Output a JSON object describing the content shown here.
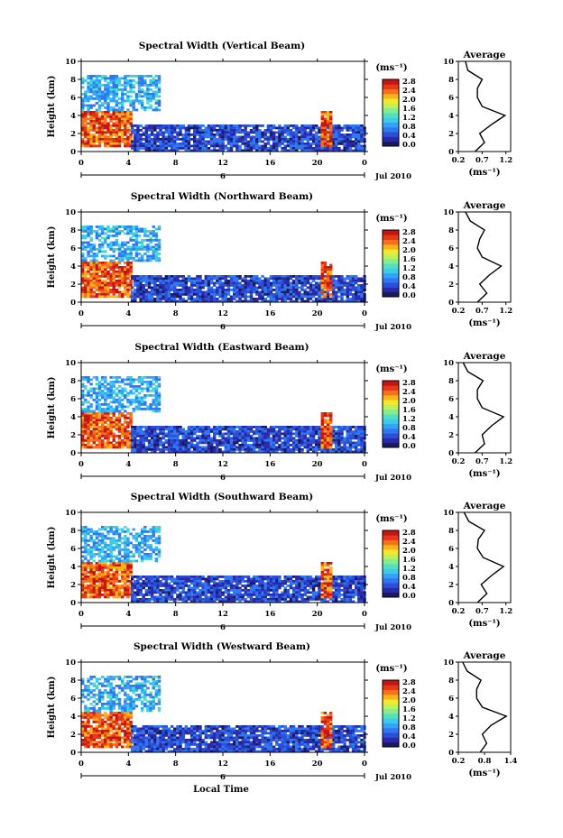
{
  "figure": {
    "xlabel": "Local Time",
    "average_title": "Average",
    "ylabel": "Height (km)",
    "date_label": "Jul 2010",
    "day_label": "6",
    "colorbar": {
      "unit_label": "(ms⁻¹)",
      "ticks": [
        "0.0",
        "0.4",
        "0.8",
        "1.2",
        "1.6",
        "2.0",
        "2.4",
        "2.8"
      ],
      "colors": [
        "#1a1a5e",
        "#2a2aa8",
        "#2b4fd8",
        "#2f78f0",
        "#34a3f5",
        "#3ccbe8",
        "#54e0c0",
        "#86ec8e",
        "#bff05a",
        "#f3e82e",
        "#fbb21c",
        "#f7701a",
        "#e43a18",
        "#c41414"
      ]
    }
  },
  "chart_data": [
    {
      "type": "heatmap",
      "title": "Spectral Width (Vertical Beam)",
      "xlim": [
        0,
        24
      ],
      "ylim": [
        0,
        10
      ],
      "xticks": [
        "0",
        "4",
        "8",
        "12",
        "16",
        "20",
        "0"
      ],
      "yticks": [
        "0",
        "2",
        "4",
        "6",
        "8",
        "10"
      ],
      "zlim": [
        0,
        3.0
      ],
      "regions": [
        {
          "x": [
            0,
            4.2
          ],
          "y": [
            0.5,
            4.5
          ],
          "value": 2.6
        },
        {
          "x": [
            4.2,
            24
          ],
          "y": [
            0.2,
            3.0
          ],
          "value": 0.5
        },
        {
          "x": [
            0,
            6.5
          ],
          "y": [
            4.5,
            8.5
          ],
          "value": 1.0
        },
        {
          "x": [
            20.3,
            21.2
          ],
          "y": [
            0.5,
            4.5
          ],
          "value": 2.6
        }
      ],
      "avg": {
        "xticks": [
          "0.2",
          "0.7",
          "1.2"
        ],
        "xlim": [
          0.2,
          1.3
        ],
        "xlabel": "(ms⁻¹)",
        "profile": [
          [
            0,
            0.55
          ],
          [
            1,
            0.75
          ],
          [
            2,
            0.65
          ],
          [
            3,
            0.9
          ],
          [
            4,
            1.18
          ],
          [
            5,
            0.7
          ],
          [
            6,
            0.6
          ],
          [
            7,
            0.6
          ],
          [
            8,
            0.7
          ],
          [
            9,
            0.4
          ],
          [
            10,
            0.35
          ]
        ]
      }
    },
    {
      "type": "heatmap",
      "title": "Spectral Width (Northward Beam)",
      "xlim": [
        0,
        24
      ],
      "ylim": [
        0,
        10
      ],
      "xticks": [
        "0",
        "4",
        "8",
        "12",
        "16",
        "20",
        "0"
      ],
      "yticks": [
        "0",
        "2",
        "4",
        "6",
        "8",
        "10"
      ],
      "zlim": [
        0,
        3.0
      ],
      "regions": [
        {
          "x": [
            0,
            4.2
          ],
          "y": [
            0.5,
            4.5
          ],
          "value": 2.6
        },
        {
          "x": [
            4.2,
            24
          ],
          "y": [
            0.2,
            3.0
          ],
          "value": 0.5
        },
        {
          "x": [
            0,
            6.5
          ],
          "y": [
            4.5,
            8.5
          ],
          "value": 1.0
        },
        {
          "x": [
            20.3,
            21.2
          ],
          "y": [
            0.5,
            4.5
          ],
          "value": 2.6
        }
      ],
      "avg": {
        "xticks": [
          "0.2",
          "0.7",
          "1.2"
        ],
        "xlim": [
          0.2,
          1.3
        ],
        "xlabel": "(ms⁻¹)",
        "profile": [
          [
            0,
            0.6
          ],
          [
            1,
            0.8
          ],
          [
            2,
            0.65
          ],
          [
            3,
            0.85
          ],
          [
            4,
            1.1
          ],
          [
            5,
            0.7
          ],
          [
            6,
            0.6
          ],
          [
            7,
            0.65
          ],
          [
            8,
            0.75
          ],
          [
            9,
            0.45
          ],
          [
            10,
            0.35
          ]
        ]
      }
    },
    {
      "type": "heatmap",
      "title": "Spectral Width (Eastward Beam)",
      "xlim": [
        0,
        24
      ],
      "ylim": [
        0,
        10
      ],
      "xticks": [
        "0",
        "4",
        "8",
        "12",
        "16",
        "20",
        "0"
      ],
      "yticks": [
        "0",
        "2",
        "4",
        "6",
        "8",
        "10"
      ],
      "zlim": [
        0,
        3.0
      ],
      "regions": [
        {
          "x": [
            0,
            4.2
          ],
          "y": [
            0.5,
            4.5
          ],
          "value": 2.6
        },
        {
          "x": [
            4.2,
            24
          ],
          "y": [
            0.2,
            3.0
          ],
          "value": 0.5
        },
        {
          "x": [
            0,
            6.5
          ],
          "y": [
            4.5,
            8.5
          ],
          "value": 1.0
        },
        {
          "x": [
            20.3,
            21.2
          ],
          "y": [
            0.5,
            4.5
          ],
          "value": 2.6
        }
      ],
      "avg": {
        "xticks": [
          "0.2",
          "0.7",
          "1.2"
        ],
        "xlim": [
          0.2,
          1.3
        ],
        "xlabel": "(ms⁻¹)",
        "profile": [
          [
            0,
            0.55
          ],
          [
            1,
            0.75
          ],
          [
            2,
            0.7
          ],
          [
            3,
            0.9
          ],
          [
            4,
            1.15
          ],
          [
            5,
            0.7
          ],
          [
            6,
            0.6
          ],
          [
            7,
            0.6
          ],
          [
            8,
            0.72
          ],
          [
            9,
            0.4
          ],
          [
            10,
            0.3
          ]
        ]
      }
    },
    {
      "type": "heatmap",
      "title": "Spectral Width (Southward Beam)",
      "xlim": [
        0,
        24
      ],
      "ylim": [
        0,
        10
      ],
      "xticks": [
        "0",
        "4",
        "8",
        "12",
        "16",
        "20",
        "0"
      ],
      "yticks": [
        "0",
        "2",
        "4",
        "6",
        "8",
        "10"
      ],
      "zlim": [
        0,
        3.0
      ],
      "regions": [
        {
          "x": [
            0,
            4.2
          ],
          "y": [
            0.5,
            4.5
          ],
          "value": 2.6
        },
        {
          "x": [
            4.2,
            24
          ],
          "y": [
            0.2,
            3.0
          ],
          "value": 0.5
        },
        {
          "x": [
            0,
            6.5
          ],
          "y": [
            4.5,
            8.5
          ],
          "value": 1.0
        },
        {
          "x": [
            20.3,
            21.2
          ],
          "y": [
            0.5,
            4.5
          ],
          "value": 2.6
        }
      ],
      "avg": {
        "xticks": [
          "0.2",
          "0.7",
          "1.2"
        ],
        "xlim": [
          0.2,
          1.3
        ],
        "xlabel": "(ms⁻¹)",
        "profile": [
          [
            0,
            0.6
          ],
          [
            1,
            0.8
          ],
          [
            2,
            0.68
          ],
          [
            3,
            0.9
          ],
          [
            4,
            1.15
          ],
          [
            5,
            0.72
          ],
          [
            6,
            0.6
          ],
          [
            7,
            0.62
          ],
          [
            8,
            0.75
          ],
          [
            9,
            0.42
          ],
          [
            10,
            0.32
          ]
        ]
      }
    },
    {
      "type": "heatmap",
      "title": "Spectral Width (Westward Beam)",
      "xlim": [
        0,
        24
      ],
      "ylim": [
        0,
        10
      ],
      "xticks": [
        "0",
        "4",
        "8",
        "12",
        "16",
        "20",
        "0"
      ],
      "yticks": [
        "0",
        "2",
        "4",
        "6",
        "8",
        "10"
      ],
      "zlim": [
        0,
        3.0
      ],
      "regions": [
        {
          "x": [
            0,
            4.2
          ],
          "y": [
            0.5,
            4.5
          ],
          "value": 2.6
        },
        {
          "x": [
            4.2,
            24
          ],
          "y": [
            0.2,
            3.0
          ],
          "value": 0.5
        },
        {
          "x": [
            0,
            6.5
          ],
          "y": [
            4.5,
            8.5
          ],
          "value": 1.0
        },
        {
          "x": [
            20.3,
            21.2
          ],
          "y": [
            0.5,
            4.5
          ],
          "value": 2.6
        }
      ],
      "avg": {
        "xticks": [
          "0.2",
          "0.8",
          "1.4"
        ],
        "xlim": [
          0.2,
          1.4
        ],
        "xlabel": "(ms⁻¹)",
        "profile": [
          [
            0,
            0.7
          ],
          [
            1,
            0.85
          ],
          [
            2,
            0.75
          ],
          [
            3,
            0.95
          ],
          [
            4,
            1.3
          ],
          [
            5,
            0.75
          ],
          [
            6,
            0.62
          ],
          [
            7,
            0.62
          ],
          [
            8,
            0.72
          ],
          [
            9,
            0.4
          ],
          [
            10,
            0.3
          ]
        ]
      }
    }
  ]
}
